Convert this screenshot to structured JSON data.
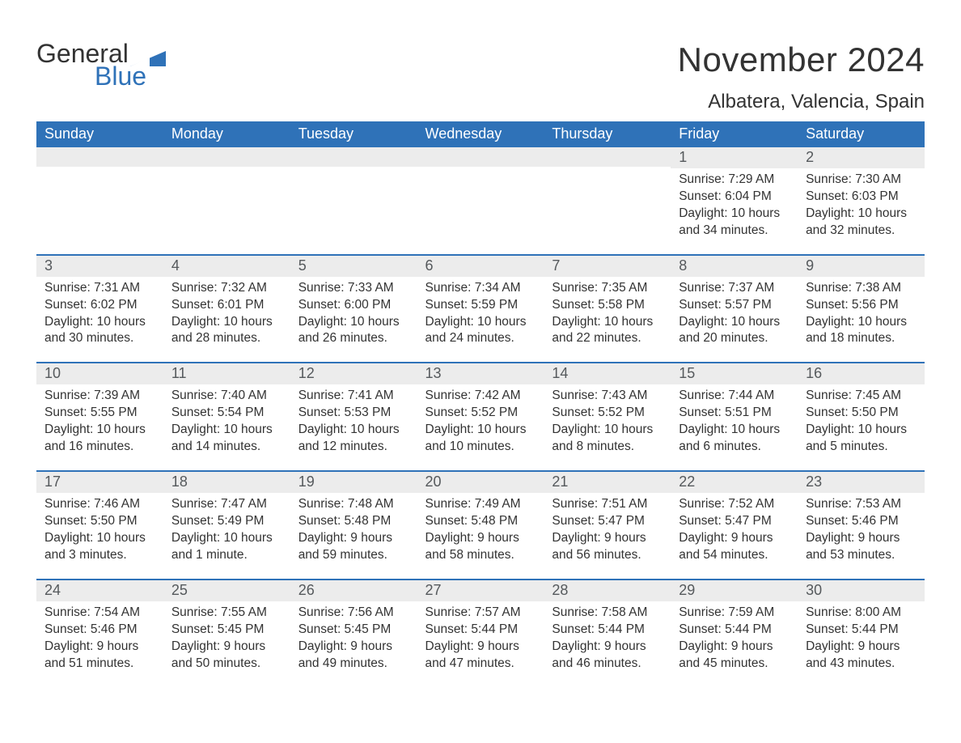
{
  "logo": {
    "word1": "General",
    "word2": "Blue",
    "triangle_color": "#2f72b8"
  },
  "title": {
    "month": "November 2024",
    "location": "Albatera, Valencia, Spain"
  },
  "colors": {
    "header_bg": "#2f72b8",
    "header_fg": "#ffffff",
    "daynum_bg": "#ececec",
    "daynum_fg": "#55595c",
    "row_divider": "#2f72b8",
    "text": "#333333",
    "background": "#ffffff"
  },
  "typography": {
    "month_fontsize": 42,
    "location_fontsize": 24,
    "th_fontsize": 18,
    "daynum_fontsize": 18,
    "body_fontsize": 15.5
  },
  "weekdays": [
    "Sunday",
    "Monday",
    "Tuesday",
    "Wednesday",
    "Thursday",
    "Friday",
    "Saturday"
  ],
  "weeks": [
    [
      {
        "empty": true
      },
      {
        "empty": true
      },
      {
        "empty": true
      },
      {
        "empty": true
      },
      {
        "empty": true
      },
      {
        "day": "1",
        "sunrise": "Sunrise: 7:29 AM",
        "sunset": "Sunset: 6:04 PM",
        "daylight": "Daylight: 10 hours and 34 minutes."
      },
      {
        "day": "2",
        "sunrise": "Sunrise: 7:30 AM",
        "sunset": "Sunset: 6:03 PM",
        "daylight": "Daylight: 10 hours and 32 minutes."
      }
    ],
    [
      {
        "day": "3",
        "sunrise": "Sunrise: 7:31 AM",
        "sunset": "Sunset: 6:02 PM",
        "daylight": "Daylight: 10 hours and 30 minutes."
      },
      {
        "day": "4",
        "sunrise": "Sunrise: 7:32 AM",
        "sunset": "Sunset: 6:01 PM",
        "daylight": "Daylight: 10 hours and 28 minutes."
      },
      {
        "day": "5",
        "sunrise": "Sunrise: 7:33 AM",
        "sunset": "Sunset: 6:00 PM",
        "daylight": "Daylight: 10 hours and 26 minutes."
      },
      {
        "day": "6",
        "sunrise": "Sunrise: 7:34 AM",
        "sunset": "Sunset: 5:59 PM",
        "daylight": "Daylight: 10 hours and 24 minutes."
      },
      {
        "day": "7",
        "sunrise": "Sunrise: 7:35 AM",
        "sunset": "Sunset: 5:58 PM",
        "daylight": "Daylight: 10 hours and 22 minutes."
      },
      {
        "day": "8",
        "sunrise": "Sunrise: 7:37 AM",
        "sunset": "Sunset: 5:57 PM",
        "daylight": "Daylight: 10 hours and 20 minutes."
      },
      {
        "day": "9",
        "sunrise": "Sunrise: 7:38 AM",
        "sunset": "Sunset: 5:56 PM",
        "daylight": "Daylight: 10 hours and 18 minutes."
      }
    ],
    [
      {
        "day": "10",
        "sunrise": "Sunrise: 7:39 AM",
        "sunset": "Sunset: 5:55 PM",
        "daylight": "Daylight: 10 hours and 16 minutes."
      },
      {
        "day": "11",
        "sunrise": "Sunrise: 7:40 AM",
        "sunset": "Sunset: 5:54 PM",
        "daylight": "Daylight: 10 hours and 14 minutes."
      },
      {
        "day": "12",
        "sunrise": "Sunrise: 7:41 AM",
        "sunset": "Sunset: 5:53 PM",
        "daylight": "Daylight: 10 hours and 12 minutes."
      },
      {
        "day": "13",
        "sunrise": "Sunrise: 7:42 AM",
        "sunset": "Sunset: 5:52 PM",
        "daylight": "Daylight: 10 hours and 10 minutes."
      },
      {
        "day": "14",
        "sunrise": "Sunrise: 7:43 AM",
        "sunset": "Sunset: 5:52 PM",
        "daylight": "Daylight: 10 hours and 8 minutes."
      },
      {
        "day": "15",
        "sunrise": "Sunrise: 7:44 AM",
        "sunset": "Sunset: 5:51 PM",
        "daylight": "Daylight: 10 hours and 6 minutes."
      },
      {
        "day": "16",
        "sunrise": "Sunrise: 7:45 AM",
        "sunset": "Sunset: 5:50 PM",
        "daylight": "Daylight: 10 hours and 5 minutes."
      }
    ],
    [
      {
        "day": "17",
        "sunrise": "Sunrise: 7:46 AM",
        "sunset": "Sunset: 5:50 PM",
        "daylight": "Daylight: 10 hours and 3 minutes."
      },
      {
        "day": "18",
        "sunrise": "Sunrise: 7:47 AM",
        "sunset": "Sunset: 5:49 PM",
        "daylight": "Daylight: 10 hours and 1 minute."
      },
      {
        "day": "19",
        "sunrise": "Sunrise: 7:48 AM",
        "sunset": "Sunset: 5:48 PM",
        "daylight": "Daylight: 9 hours and 59 minutes."
      },
      {
        "day": "20",
        "sunrise": "Sunrise: 7:49 AM",
        "sunset": "Sunset: 5:48 PM",
        "daylight": "Daylight: 9 hours and 58 minutes."
      },
      {
        "day": "21",
        "sunrise": "Sunrise: 7:51 AM",
        "sunset": "Sunset: 5:47 PM",
        "daylight": "Daylight: 9 hours and 56 minutes."
      },
      {
        "day": "22",
        "sunrise": "Sunrise: 7:52 AM",
        "sunset": "Sunset: 5:47 PM",
        "daylight": "Daylight: 9 hours and 54 minutes."
      },
      {
        "day": "23",
        "sunrise": "Sunrise: 7:53 AM",
        "sunset": "Sunset: 5:46 PM",
        "daylight": "Daylight: 9 hours and 53 minutes."
      }
    ],
    [
      {
        "day": "24",
        "sunrise": "Sunrise: 7:54 AM",
        "sunset": "Sunset: 5:46 PM",
        "daylight": "Daylight: 9 hours and 51 minutes."
      },
      {
        "day": "25",
        "sunrise": "Sunrise: 7:55 AM",
        "sunset": "Sunset: 5:45 PM",
        "daylight": "Daylight: 9 hours and 50 minutes."
      },
      {
        "day": "26",
        "sunrise": "Sunrise: 7:56 AM",
        "sunset": "Sunset: 5:45 PM",
        "daylight": "Daylight: 9 hours and 49 minutes."
      },
      {
        "day": "27",
        "sunrise": "Sunrise: 7:57 AM",
        "sunset": "Sunset: 5:44 PM",
        "daylight": "Daylight: 9 hours and 47 minutes."
      },
      {
        "day": "28",
        "sunrise": "Sunrise: 7:58 AM",
        "sunset": "Sunset: 5:44 PM",
        "daylight": "Daylight: 9 hours and 46 minutes."
      },
      {
        "day": "29",
        "sunrise": "Sunrise: 7:59 AM",
        "sunset": "Sunset: 5:44 PM",
        "daylight": "Daylight: 9 hours and 45 minutes."
      },
      {
        "day": "30",
        "sunrise": "Sunrise: 8:00 AM",
        "sunset": "Sunset: 5:44 PM",
        "daylight": "Daylight: 9 hours and 43 minutes."
      }
    ]
  ]
}
